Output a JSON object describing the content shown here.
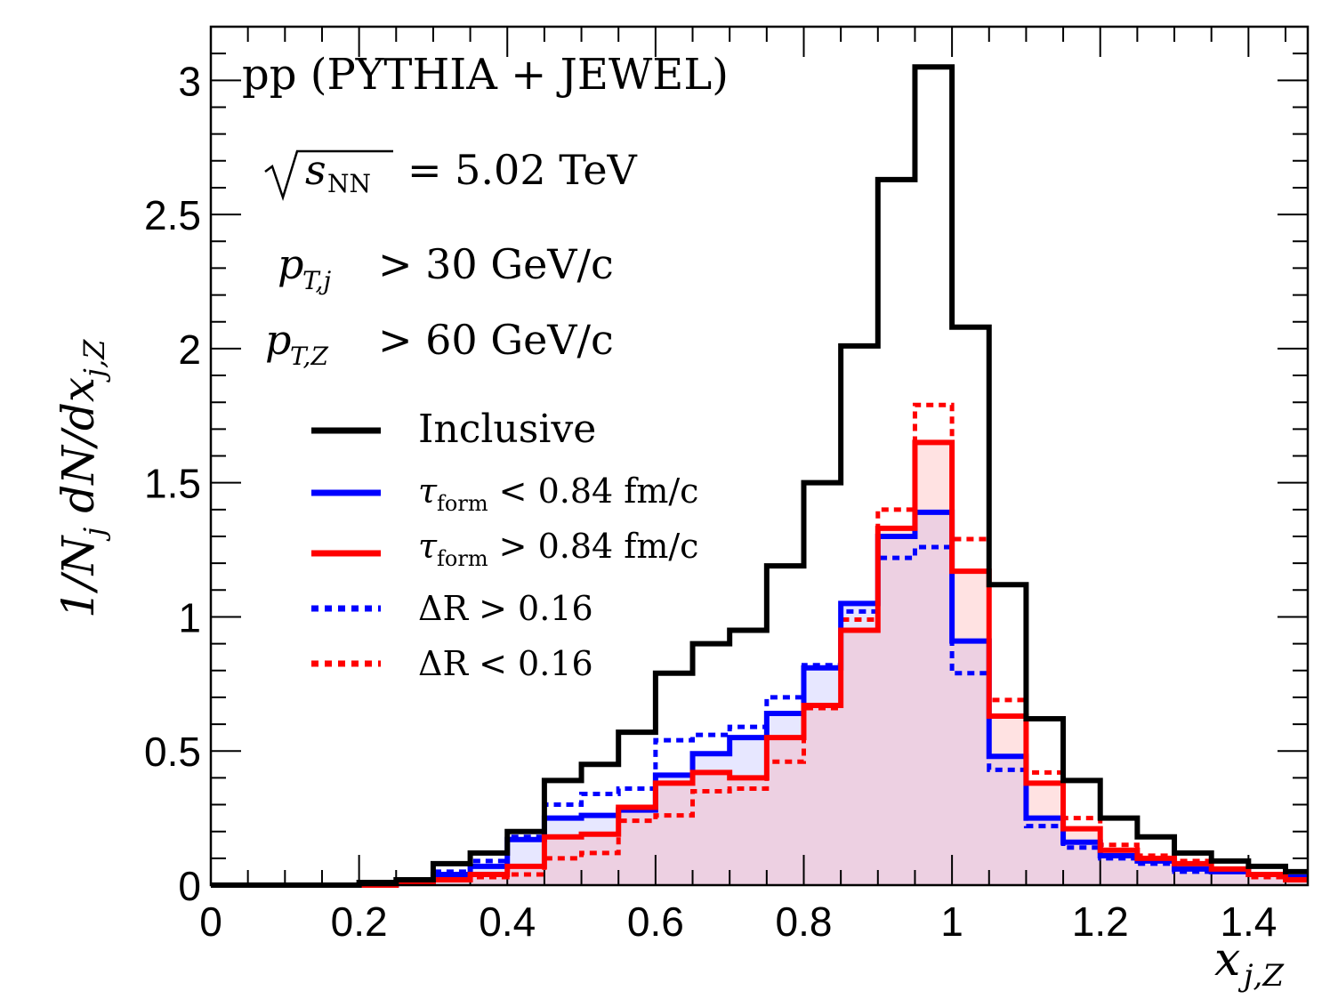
{
  "chart_data": {
    "type": "histogram-step",
    "title": "pp (PYTHIA + JEWEL)",
    "annotations": {
      "energy": "= 5.02 TeV",
      "energy_sub": "NN",
      "ptj": "> 30 GeV/c",
      "ptz": "> 60 GeV/c"
    },
    "xlabel": "x_{j,Z}",
    "ylabel": "1/N_j dN/dx_{j,Z}",
    "xlim": [
      0,
      1.48
    ],
    "ylim": [
      0,
      3.2
    ],
    "x_ticks": [
      "0",
      "0.2",
      "0.4",
      "0.6",
      "0.8",
      "1",
      "1.2",
      "1.4"
    ],
    "y_ticks": [
      "0",
      "0.5",
      "1",
      "1.5",
      "2",
      "2.5",
      "3"
    ],
    "bin_width": 0.05,
    "bin_edges_start": 0,
    "series": [
      {
        "name": "Inclusive",
        "color": "#000000",
        "style": "solid",
        "fill": false,
        "values": [
          0.0,
          0.0,
          0.0,
          0.0,
          0.01,
          0.02,
          0.08,
          0.12,
          0.2,
          0.39,
          0.45,
          0.57,
          0.79,
          0.9,
          0.95,
          1.19,
          1.5,
          2.01,
          2.63,
          3.05,
          2.08,
          1.12,
          0.62,
          0.39,
          0.25,
          0.18,
          0.12,
          0.09,
          0.07,
          0.05
        ]
      },
      {
        "name": "τform < 0.84 fm/c",
        "legend_main": "τ",
        "legend_sub": "form",
        "legend_rest": " < 0.84 fm/c",
        "color": "#0000ff",
        "style": "solid",
        "fill": "rgba(160,160,255,0.25)",
        "values": [
          0.0,
          0.0,
          0.0,
          0.0,
          0.0,
          0.01,
          0.04,
          0.07,
          0.17,
          0.25,
          0.26,
          0.28,
          0.41,
          0.49,
          0.55,
          0.64,
          0.81,
          1.05,
          1.3,
          1.39,
          0.91,
          0.48,
          0.25,
          0.16,
          0.11,
          0.09,
          0.06,
          0.05,
          0.04,
          0.03
        ]
      },
      {
        "name": "τform > 0.84 fm/c",
        "legend_main": "τ",
        "legend_sub": "form",
        "legend_rest": " > 0.84 fm/c",
        "color": "#ff0000",
        "style": "solid",
        "fill": "rgba(255,140,140,0.25)",
        "values": [
          0.0,
          0.0,
          0.0,
          0.0,
          0.0,
          0.01,
          0.02,
          0.04,
          0.07,
          0.18,
          0.19,
          0.29,
          0.38,
          0.42,
          0.4,
          0.55,
          0.67,
          0.95,
          1.33,
          1.65,
          1.17,
          0.63,
          0.38,
          0.21,
          0.13,
          0.1,
          0.08,
          0.06,
          0.04,
          0.02
        ]
      },
      {
        "name": "ΔR > 0.16",
        "legend_text": "ΔR > 0.16",
        "color": "#0000ff",
        "style": "dotted",
        "fill": false,
        "values": [
          0.0,
          0.0,
          0.0,
          0.0,
          0.0,
          0.01,
          0.05,
          0.09,
          0.18,
          0.3,
          0.34,
          0.36,
          0.54,
          0.56,
          0.59,
          0.7,
          0.82,
          1.02,
          1.22,
          1.26,
          0.79,
          0.43,
          0.22,
          0.14,
          0.1,
          0.08,
          0.05,
          0.05,
          0.04,
          0.03
        ]
      },
      {
        "name": "ΔR < 0.16",
        "legend_text": "ΔR < 0.16",
        "color": "#ff0000",
        "style": "dotted",
        "fill": false,
        "values": [
          0.0,
          0.0,
          0.0,
          0.0,
          0.0,
          0.01,
          0.02,
          0.03,
          0.04,
          0.1,
          0.12,
          0.24,
          0.26,
          0.35,
          0.36,
          0.46,
          0.66,
          0.99,
          1.4,
          1.79,
          1.29,
          0.69,
          0.42,
          0.25,
          0.15,
          0.11,
          0.09,
          0.05,
          0.03,
          0.02
        ]
      }
    ]
  }
}
